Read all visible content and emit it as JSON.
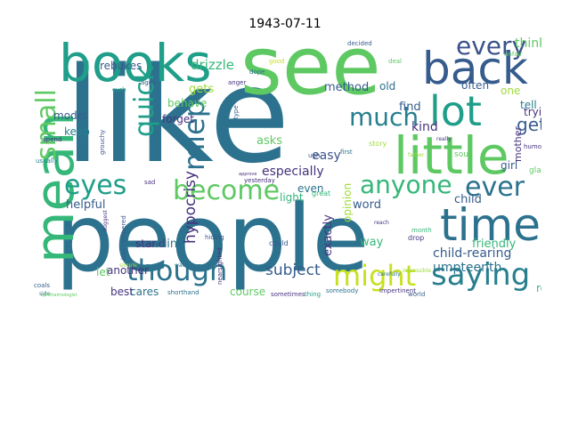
{
  "title": "1943-07-11",
  "words": {
    "like": "like",
    "people": "people",
    "see": "see",
    "books": "books",
    "back": "back",
    "mean": "mean",
    "little": "little",
    "lot": "lot",
    "time": "time",
    "though": "though",
    "might": "might",
    "saying": "saying",
    "anyone": "anyone",
    "ever": "ever",
    "become": "become",
    "eyes": "eyes",
    "much": "much",
    "every": "every",
    "small": "small",
    "quick": "quick",
    "miep": "miep",
    "get": "get",
    "think": "think",
    "hypocrisy": "hypocrisy",
    "child_rearing": "child-rearing",
    "subject": "subject",
    "umpteenth": "umpteenth",
    "easy": "easy",
    "rebukes": "rebukes",
    "drizzle": "drizzle",
    "especially": "especially",
    "method": "method",
    "old": "old",
    "often": "often",
    "trying": "trying",
    "tell": "tell",
    "one": "one",
    "helpful": "helpful",
    "keep": "keep",
    "model": "model",
    "behave": "behave",
    "gets": "gets",
    "forget": "forget",
    "asks": "asks",
    "find": "find",
    "kind": "kind",
    "word": "word",
    "child": "child",
    "friendly": "friendly",
    "role": "role",
    "way": "way",
    "exactly": "exactly",
    "opinion": "opinion",
    "even": "even",
    "light": "light",
    "another": "another",
    "stand": "stand",
    "rain": "rain",
    "let": "let",
    "best": "best",
    "cares": "cares",
    "course": "course",
    "girl": "girl",
    "mother": "mother",
    "glasses": "glasses",
    "sour": "sour",
    "story": "story",
    "usually": "usually",
    "coals": "coals",
    "great": "great",
    "could": "could",
    "hiding": "hiding",
    "sad": "sad",
    "ages": "ages",
    "curb": "curb",
    "anger": "anger",
    "first": "first",
    "yesterday": "yesterday",
    "sometimes": "sometimes",
    "world": "world",
    "impertinent": "impertinent",
    "somebody": "somebody",
    "shorthand": "shorthand",
    "thing": "thing",
    "simple": "simple",
    "walking": "walking",
    "reach": "reach",
    "month": "month",
    "drop": "drop",
    "decided": "decided",
    "deal": "deal",
    "good": "good",
    "really": "really",
    "unfair": "unfair",
    "humorous": "humorous",
    "subjects": "subjects",
    "father": "father",
    "badtempered": "bad-tempered",
    "nearsighted": "nearsighted",
    "impossible": "impossible",
    "grouchy": "grouchy",
    "dope": "dope",
    "type": "type",
    "ugh": "ugh",
    "spend": "spend",
    "side": "side",
    "ophthalmologist": "ophthalmologist",
    "approve": "approve",
    "carefully": "carefully",
    "suggest": "suggest"
  },
  "colors": {
    "deep": "#46327e",
    "indigo": "#3b528b",
    "blue": "#365c8d",
    "teal": "#2c728e",
    "teal2": "#277f8e",
    "cyan": "#1f9e89",
    "green": "#35b779",
    "green2": "#5ec962",
    "lime": "#9fda3a",
    "yellow": "#c8e020",
    "purple": "#440154"
  }
}
